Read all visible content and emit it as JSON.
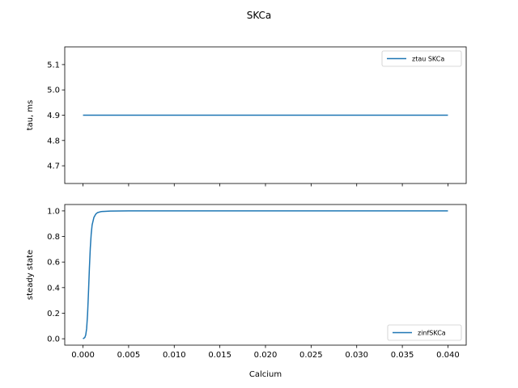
{
  "figure": {
    "suptitle": "SKCa"
  },
  "colors": {
    "series": "#1f77b4",
    "axis": "#000000",
    "background": "#ffffff",
    "legend_border": "#cccccc"
  },
  "chart_data": [
    {
      "type": "line",
      "title": "",
      "xlabel": "",
      "ylabel": "tau, ms",
      "xlim": [
        -0.002,
        0.042
      ],
      "ylim": [
        4.63,
        5.17
      ],
      "x_ticks": [
        0.0,
        0.005,
        0.01,
        0.015,
        0.02,
        0.025,
        0.03,
        0.035,
        0.04
      ],
      "x_tick_labels_visible": false,
      "y_ticks": [
        4.7,
        4.8,
        4.9,
        5.0,
        5.1
      ],
      "y_tick_labels": [
        "4.7",
        "4.8",
        "4.9",
        "5.0",
        "5.1"
      ],
      "grid": false,
      "legend_placement": "upper right",
      "series": [
        {
          "name": "ztau SKCa",
          "x": [
            0.0,
            0.005,
            0.01,
            0.015,
            0.02,
            0.025,
            0.03,
            0.035,
            0.04
          ],
          "y": [
            4.9,
            4.9,
            4.9,
            4.9,
            4.9,
            4.9,
            4.9,
            4.9,
            4.9
          ]
        }
      ]
    },
    {
      "type": "line",
      "title": "",
      "xlabel": "Calcium",
      "ylabel": "steady state",
      "xlim": [
        -0.002,
        0.042
      ],
      "ylim": [
        -0.05,
        1.05
      ],
      "x_ticks": [
        0.0,
        0.005,
        0.01,
        0.015,
        0.02,
        0.025,
        0.03,
        0.035,
        0.04
      ],
      "x_tick_labels": [
        "0.000",
        "0.005",
        "0.010",
        "0.015",
        "0.020",
        "0.025",
        "0.030",
        "0.035",
        "0.040"
      ],
      "y_ticks": [
        0.0,
        0.2,
        0.4,
        0.6,
        0.8,
        1.0
      ],
      "y_tick_labels": [
        "0.0",
        "0.2",
        "0.4",
        "0.6",
        "0.8",
        "1.0"
      ],
      "grid": false,
      "legend_placement": "lower right",
      "series": [
        {
          "name": "zinfSKCa",
          "x": [
            0.0,
            0.0002,
            0.0003,
            0.0004,
            0.0005,
            0.0006,
            0.0007,
            0.0008,
            0.0009,
            0.001,
            0.0012,
            0.0014,
            0.0016,
            0.002,
            0.003,
            0.005,
            0.01,
            0.02,
            0.03,
            0.04
          ],
          "y": [
            0.0,
            0.01,
            0.03,
            0.08,
            0.19,
            0.36,
            0.55,
            0.71,
            0.82,
            0.89,
            0.95,
            0.975,
            0.987,
            0.995,
            0.999,
            1.0,
            1.0,
            1.0,
            1.0,
            1.0
          ]
        }
      ]
    }
  ]
}
